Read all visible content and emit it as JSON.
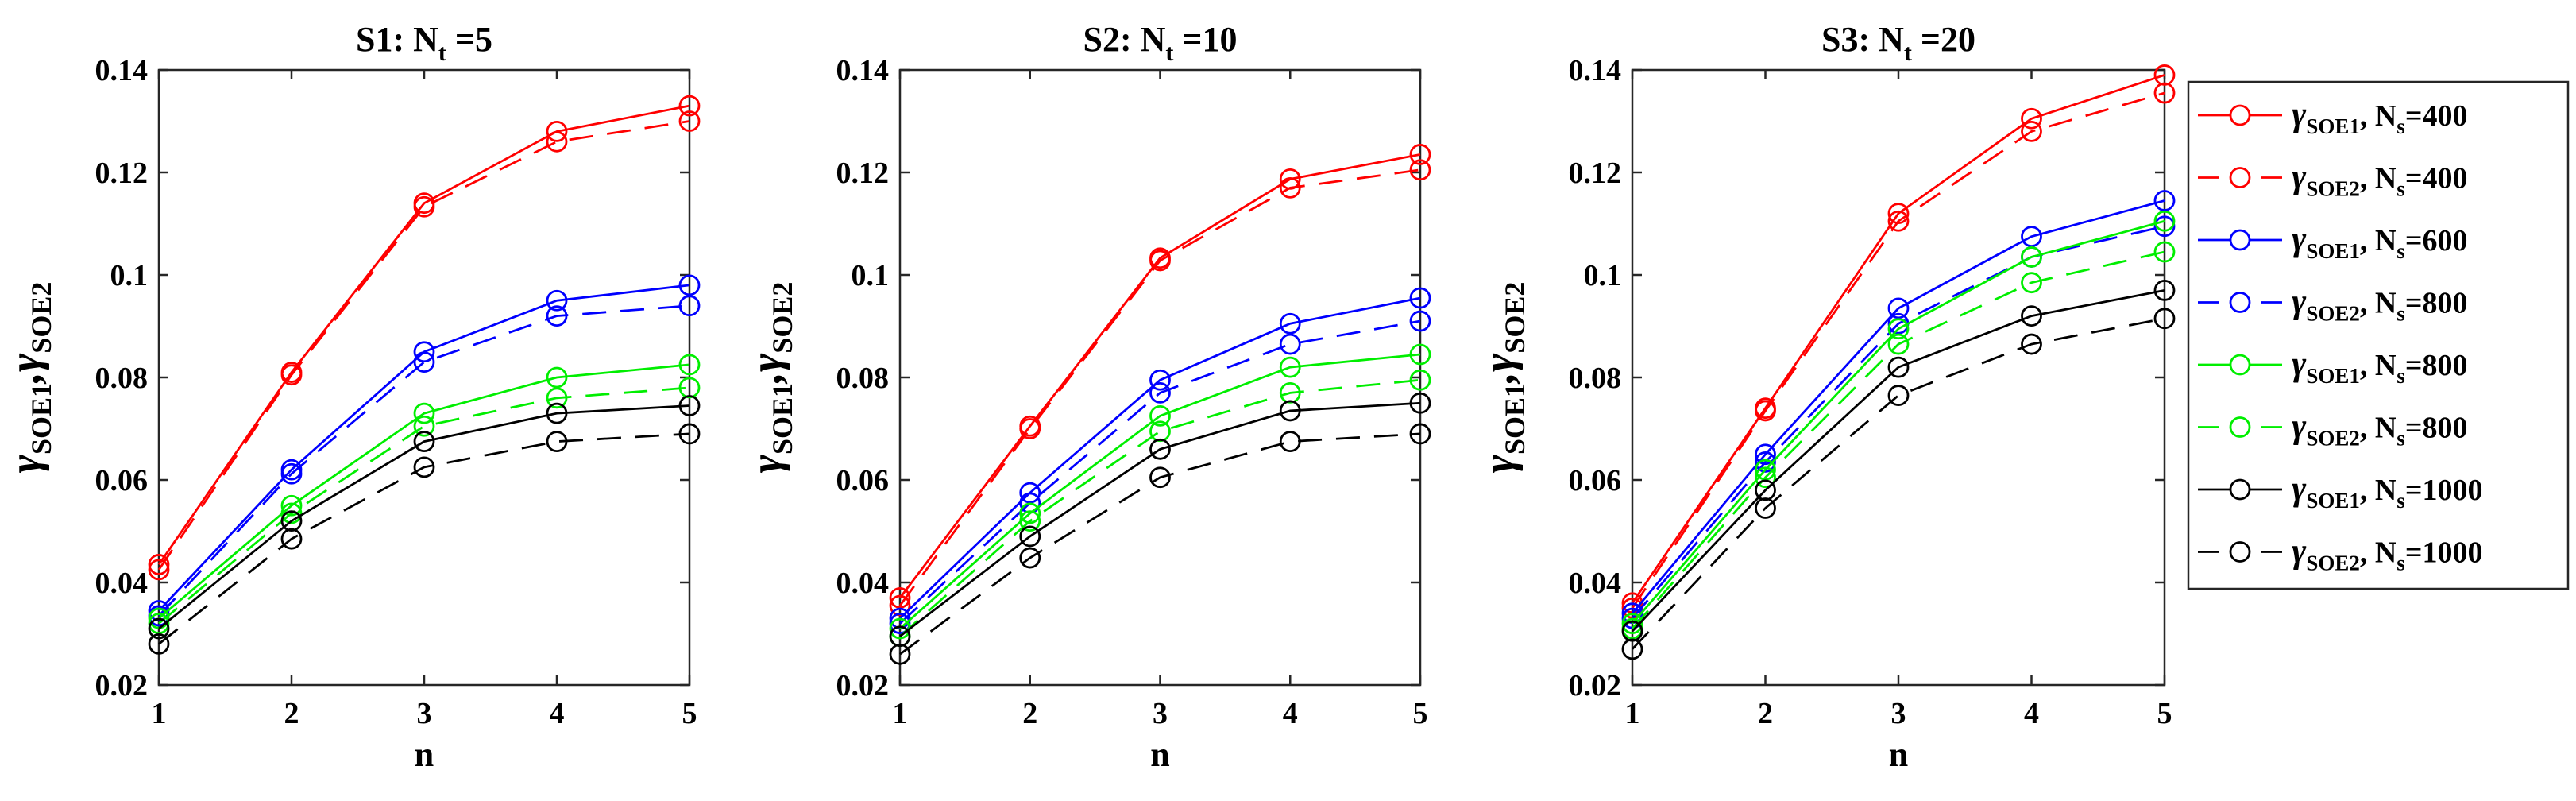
{
  "chart_data": [
    {
      "type": "line",
      "title": "S1: N",
      "title_sub": "t",
      "title_tail": " =5",
      "xlabel": "n",
      "ylabel": "γ",
      "ylabel_sub1": "SOE1",
      "ylabel_sep": ",",
      "ylabel_sub2": "SOE2",
      "x": [
        1,
        2,
        3,
        4,
        5
      ],
      "xlim": [
        1,
        5
      ],
      "ylim": [
        0.02,
        0.14
      ],
      "xticks": [
        "1",
        "2",
        "3",
        "4",
        "5"
      ],
      "yticks": [
        "0.02",
        "0.04",
        "0.06",
        "0.08",
        "0.1",
        "0.12",
        "0.14"
      ],
      "grid": false,
      "series": [
        {
          "name": "SOE1 Ns=400",
          "color": "#ff0000",
          "dash": "solid",
          "values": [
            0.0435,
            0.081,
            0.114,
            0.128,
            0.133
          ]
        },
        {
          "name": "SOE2 Ns=400",
          "color": "#ff0000",
          "dash": "dashed",
          "values": [
            0.0425,
            0.0805,
            0.1133,
            0.126,
            0.13
          ]
        },
        {
          "name": "SOE1 Ns=600",
          "color": "#0000ff",
          "dash": "solid",
          "values": [
            0.0345,
            0.062,
            0.085,
            0.095,
            0.098
          ]
        },
        {
          "name": "SOE2 Ns=800",
          "color": "#0000ff",
          "dash": "dashed",
          "values": [
            0.0335,
            0.0612,
            0.083,
            0.092,
            0.094
          ]
        },
        {
          "name": "SOE1 Ns=800",
          "color": "#00ee00",
          "dash": "solid",
          "values": [
            0.033,
            0.055,
            0.073,
            0.08,
            0.0825
          ]
        },
        {
          "name": "SOE2 Ns=800",
          "color": "#00ee00",
          "dash": "dashed",
          "values": [
            0.032,
            0.0535,
            0.0705,
            0.076,
            0.078
          ]
        },
        {
          "name": "SOE1 Ns=1000",
          "color": "#000000",
          "dash": "solid",
          "values": [
            0.031,
            0.052,
            0.0675,
            0.073,
            0.0745
          ]
        },
        {
          "name": "SOE2 Ns=1000",
          "color": "#000000",
          "dash": "dashed",
          "values": [
            0.028,
            0.0485,
            0.0625,
            0.0675,
            0.069
          ]
        }
      ]
    },
    {
      "type": "line",
      "title": "S2: N",
      "title_sub": "t",
      "title_tail": " =10",
      "xlabel": "n",
      "ylabel": "γ",
      "ylabel_sub1": "SOE1",
      "ylabel_sep": ",",
      "ylabel_sub2": "SOE2",
      "x": [
        1,
        2,
        3,
        4,
        5
      ],
      "xlim": [
        1,
        5
      ],
      "ylim": [
        0.02,
        0.14
      ],
      "xticks": [
        "1",
        "2",
        "3",
        "4",
        "5"
      ],
      "yticks": [
        "0.02",
        "0.04",
        "0.06",
        "0.08",
        "0.1",
        "0.12",
        "0.14"
      ],
      "grid": false,
      "series": [
        {
          "name": "SOE1 Ns=400",
          "color": "#ff0000",
          "dash": "solid",
          "values": [
            0.037,
            0.0705,
            0.1033,
            0.1187,
            0.1235
          ]
        },
        {
          "name": "SOE2 Ns=400",
          "color": "#ff0000",
          "dash": "dashed",
          "values": [
            0.0355,
            0.07,
            0.1028,
            0.117,
            0.1205
          ]
        },
        {
          "name": "SOE1 Ns=600",
          "color": "#0000ff",
          "dash": "solid",
          "values": [
            0.033,
            0.0575,
            0.0795,
            0.0905,
            0.0955
          ]
        },
        {
          "name": "SOE2 Ns=800",
          "color": "#0000ff",
          "dash": "dashed",
          "values": [
            0.032,
            0.0555,
            0.077,
            0.0865,
            0.091
          ]
        },
        {
          "name": "SOE1 Ns=800",
          "color": "#00ee00",
          "dash": "solid",
          "values": [
            0.031,
            0.0535,
            0.0725,
            0.082,
            0.0845
          ]
        },
        {
          "name": "SOE2 Ns=800",
          "color": "#00ee00",
          "dash": "dashed",
          "values": [
            0.0295,
            0.052,
            0.0695,
            0.077,
            0.0795
          ]
        },
        {
          "name": "SOE1 Ns=1000",
          "color": "#000000",
          "dash": "solid",
          "values": [
            0.0295,
            0.049,
            0.066,
            0.0735,
            0.075
          ]
        },
        {
          "name": "SOE2 Ns=1000",
          "color": "#000000",
          "dash": "dashed",
          "values": [
            0.026,
            0.0448,
            0.0605,
            0.0675,
            0.069
          ]
        }
      ]
    },
    {
      "type": "line",
      "title": "S3: N",
      "title_sub": "t",
      "title_tail": " =20",
      "xlabel": "n",
      "ylabel": "γ",
      "ylabel_sub1": "SOE1",
      "ylabel_sep": ",",
      "ylabel_sub2": "SOE2",
      "x": [
        1,
        2,
        3,
        4,
        5
      ],
      "xlim": [
        1,
        5
      ],
      "ylim": [
        0.02,
        0.14
      ],
      "xticks": [
        "1",
        "2",
        "3",
        "4",
        "5"
      ],
      "yticks": [
        "0.02",
        "0.04",
        "0.06",
        "0.08",
        "0.1",
        "0.12",
        "0.14"
      ],
      "grid": false,
      "series": [
        {
          "name": "SOE1 Ns=400",
          "color": "#ff0000",
          "dash": "solid",
          "values": [
            0.036,
            0.074,
            0.112,
            0.1305,
            0.139
          ]
        },
        {
          "name": "SOE2 Ns=400",
          "color": "#ff0000",
          "dash": "dashed",
          "values": [
            0.035,
            0.0735,
            0.1105,
            0.128,
            0.1355
          ]
        },
        {
          "name": "SOE1 Ns=600",
          "color": "#0000ff",
          "dash": "solid",
          "values": [
            0.034,
            0.065,
            0.0935,
            0.1075,
            0.1145
          ]
        },
        {
          "name": "SOE2 Ns=800",
          "color": "#0000ff",
          "dash": "dashed",
          "values": [
            0.033,
            0.0635,
            0.0905,
            0.1035,
            0.1095
          ]
        },
        {
          "name": "SOE1 Ns=800",
          "color": "#00ee00",
          "dash": "solid",
          "values": [
            0.032,
            0.062,
            0.0895,
            0.1035,
            0.1105
          ]
        },
        {
          "name": "SOE2 Ns=800",
          "color": "#00ee00",
          "dash": "dashed",
          "values": [
            0.031,
            0.0605,
            0.0865,
            0.0985,
            0.1045
          ]
        },
        {
          "name": "SOE1 Ns=1000",
          "color": "#000000",
          "dash": "solid",
          "values": [
            0.0305,
            0.058,
            0.082,
            0.092,
            0.097
          ]
        },
        {
          "name": "SOE2 Ns=1000",
          "color": "#000000",
          "dash": "dashed",
          "values": [
            0.027,
            0.0545,
            0.0765,
            0.0865,
            0.0915
          ]
        }
      ]
    }
  ],
  "legend": {
    "placement": "right",
    "gamma": "γ",
    "ns_label": "N",
    "ns_sub": "s",
    "entries": [
      {
        "sub": "SOE1",
        "ns": "=400",
        "color": "#ff0000",
        "dash": "solid"
      },
      {
        "sub": "SOE2",
        "ns": "=400",
        "color": "#ff0000",
        "dash": "dashed"
      },
      {
        "sub": "SOE1",
        "ns": "=600",
        "color": "#0000ff",
        "dash": "solid"
      },
      {
        "sub": "SOE2",
        "ns": "=800",
        "color": "#0000ff",
        "dash": "dashed"
      },
      {
        "sub": "SOE1",
        "ns": "=800",
        "color": "#00ee00",
        "dash": "solid"
      },
      {
        "sub": "SOE2",
        "ns": "=800",
        "color": "#00ee00",
        "dash": "dashed"
      },
      {
        "sub": "SOE1",
        "ns": "=1000",
        "color": "#000000",
        "dash": "solid"
      },
      {
        "sub": "SOE2",
        "ns": "=1000",
        "color": "#000000",
        "dash": "dashed"
      }
    ]
  }
}
